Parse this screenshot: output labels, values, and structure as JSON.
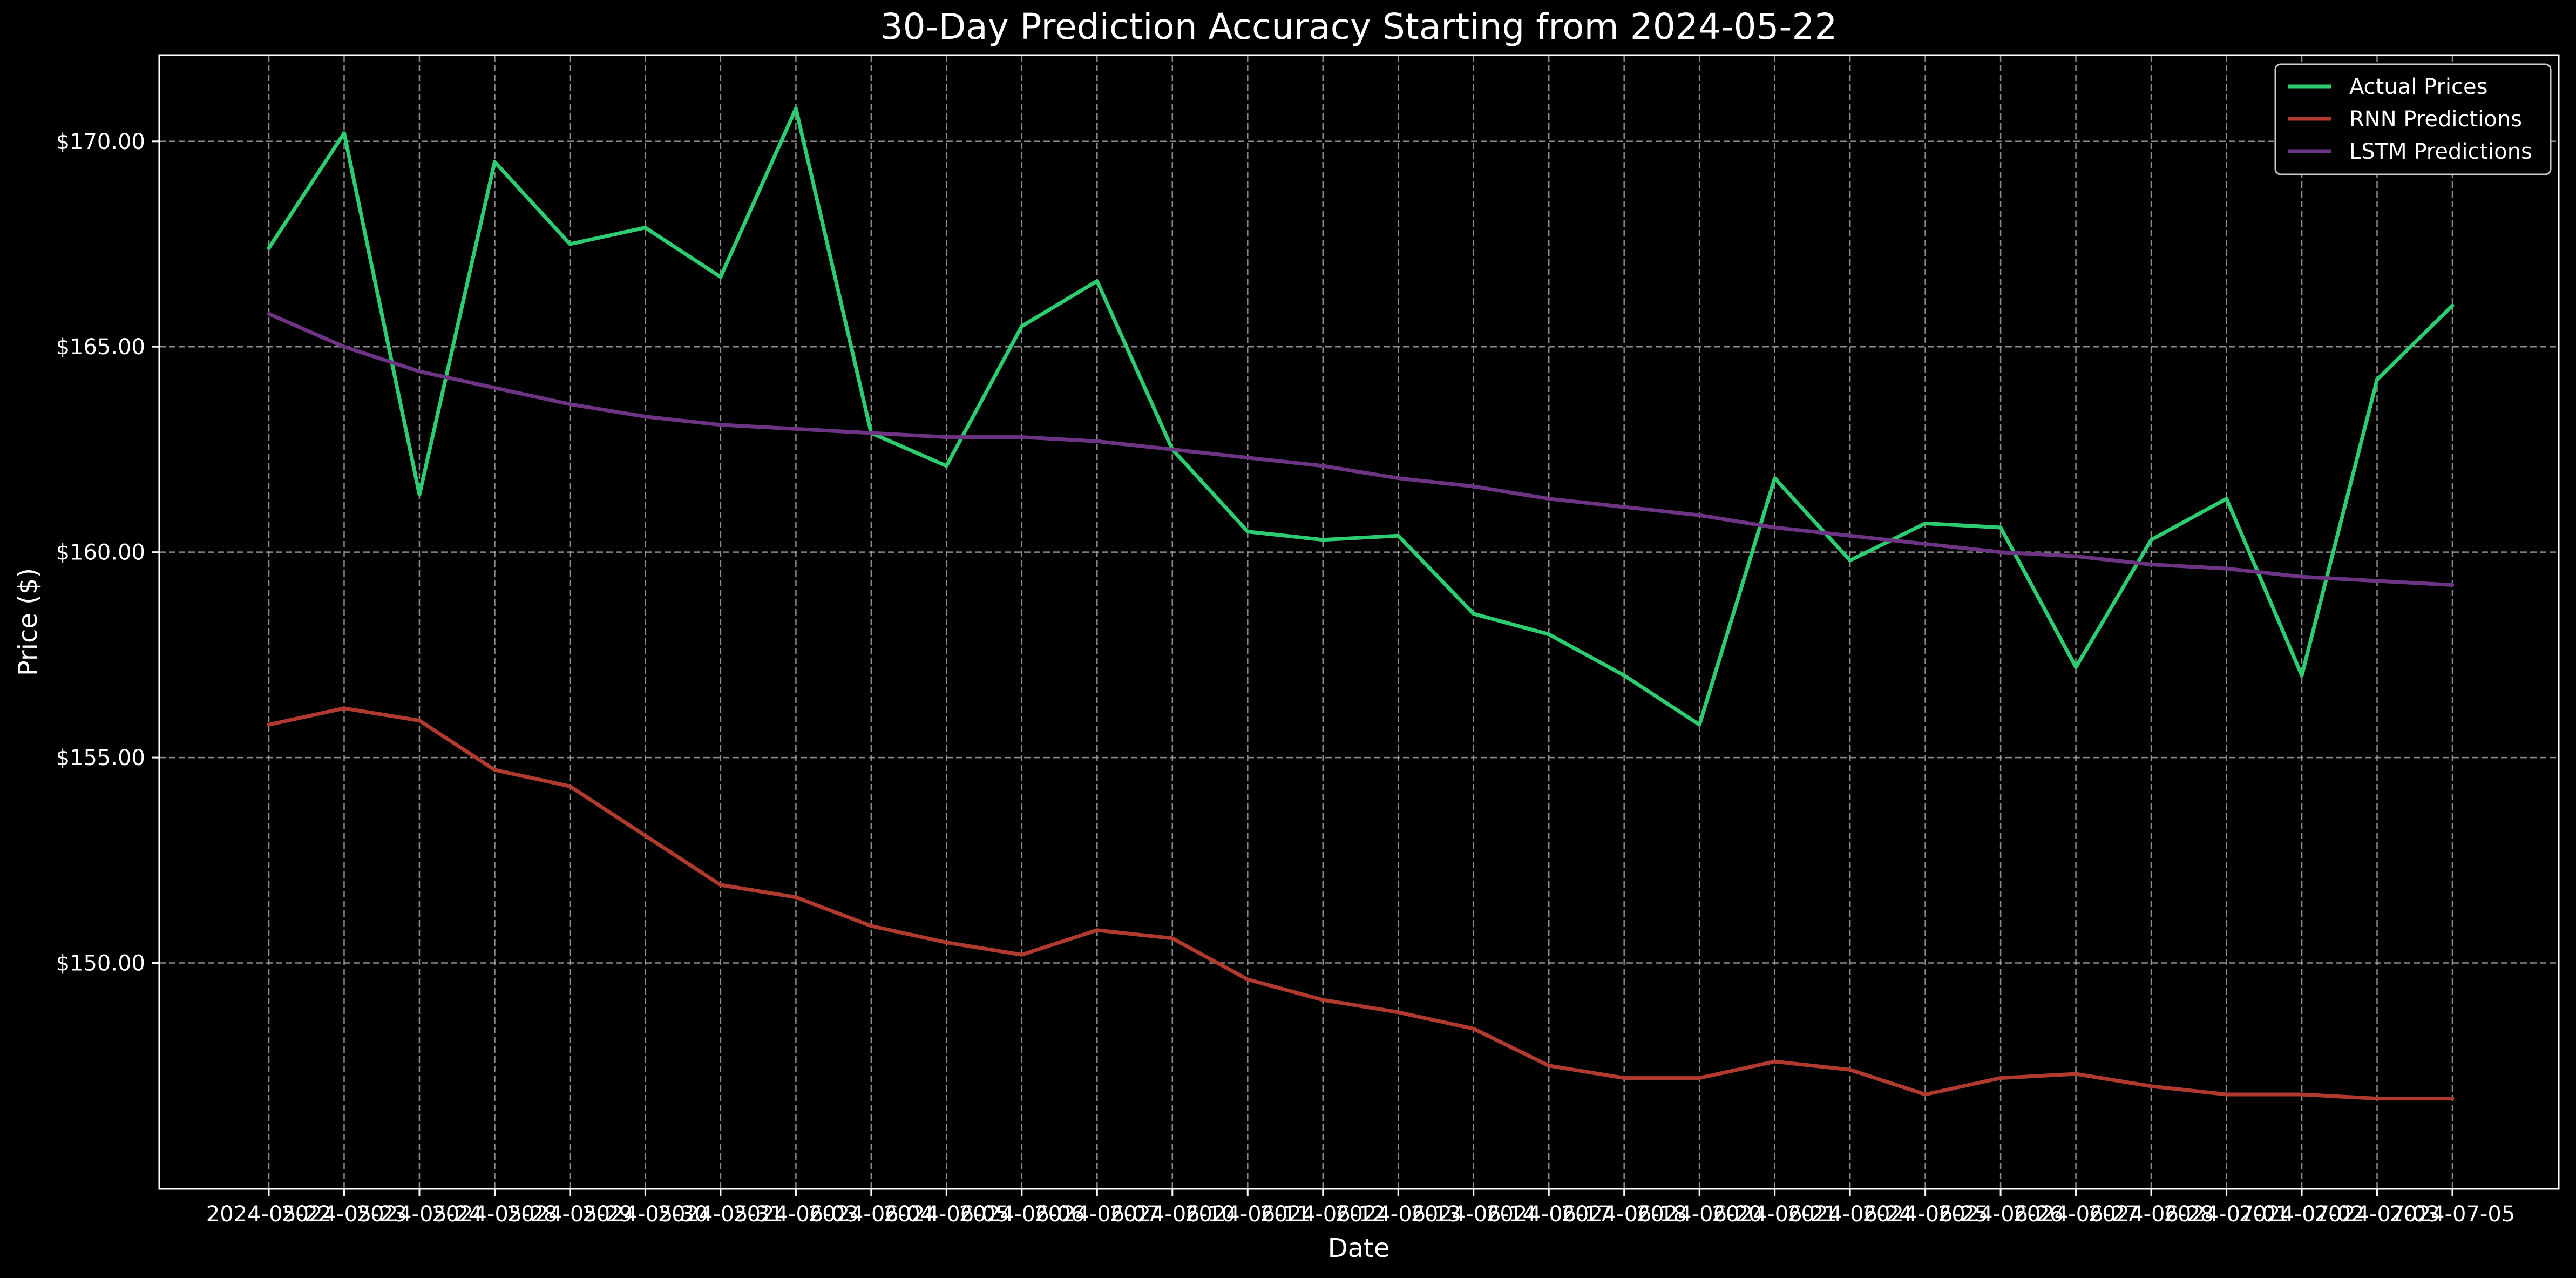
{
  "chart_data": {
    "type": "line",
    "title": "30-Day Prediction Accuracy Starting from 2024-05-22",
    "xlabel": "Date",
    "ylabel": "Price ($)",
    "ylim": [
      144.5,
      172.1
    ],
    "yticks": [
      150,
      155,
      160,
      165,
      170
    ],
    "ytick_labels": [
      "$150.00",
      "$155.00",
      "$160.00",
      "$165.00",
      "$170.00"
    ],
    "grid": true,
    "legend_position": "top-right",
    "x": [
      "2024-05-22",
      "2024-05-23",
      "2024-05-24",
      "2024-05-28",
      "2024-05-29",
      "2024-05-30",
      "2024-05-31",
      "2024-06-03",
      "2024-06-04",
      "2024-06-05",
      "2024-06-06",
      "2024-06-07",
      "2024-06-10",
      "2024-06-11",
      "2024-06-12",
      "2024-06-13",
      "2024-06-14",
      "2024-06-17",
      "2024-06-18",
      "2024-06-20",
      "2024-06-21",
      "2024-06-24",
      "2024-06-25",
      "2024-06-26",
      "2024-06-27",
      "2024-06-28",
      "2024-07-01",
      "2024-07-02",
      "2024-07-03",
      "2024-07-05"
    ],
    "series": [
      {
        "name": "Actual Prices",
        "color": "#2ecc71",
        "values": [
          167.4,
          170.2,
          161.4,
          169.5,
          167.5,
          167.9,
          166.7,
          170.8,
          162.9,
          162.1,
          165.5,
          166.6,
          162.5,
          160.5,
          160.3,
          160.4,
          158.5,
          158.0,
          157.0,
          155.8,
          161.8,
          159.8,
          160.7,
          160.6,
          157.2,
          160.3,
          161.3,
          157.0,
          164.2,
          166.0
        ]
      },
      {
        "name": "RNN Predictions",
        "color": "#b03a2e",
        "values": [
          155.8,
          156.2,
          155.9,
          154.7,
          154.3,
          153.1,
          151.9,
          151.6,
          150.9,
          150.5,
          150.2,
          150.8,
          150.6,
          149.6,
          149.1,
          148.8,
          148.4,
          147.5,
          147.2,
          147.2,
          147.6,
          147.4,
          146.8,
          147.2,
          147.3,
          147.0,
          146.8,
          146.8,
          146.7,
          146.7
        ]
      },
      {
        "name": "LSTM Predictions",
        "color": "#6c3483",
        "values": [
          165.8,
          165.0,
          164.4,
          164.0,
          163.6,
          163.3,
          163.1,
          163.0,
          162.9,
          162.8,
          162.8,
          162.7,
          162.5,
          162.3,
          162.1,
          161.8,
          161.6,
          161.3,
          161.1,
          160.9,
          160.6,
          160.4,
          160.2,
          160.0,
          159.9,
          159.7,
          159.6,
          159.4,
          159.3,
          159.2
        ]
      }
    ]
  }
}
